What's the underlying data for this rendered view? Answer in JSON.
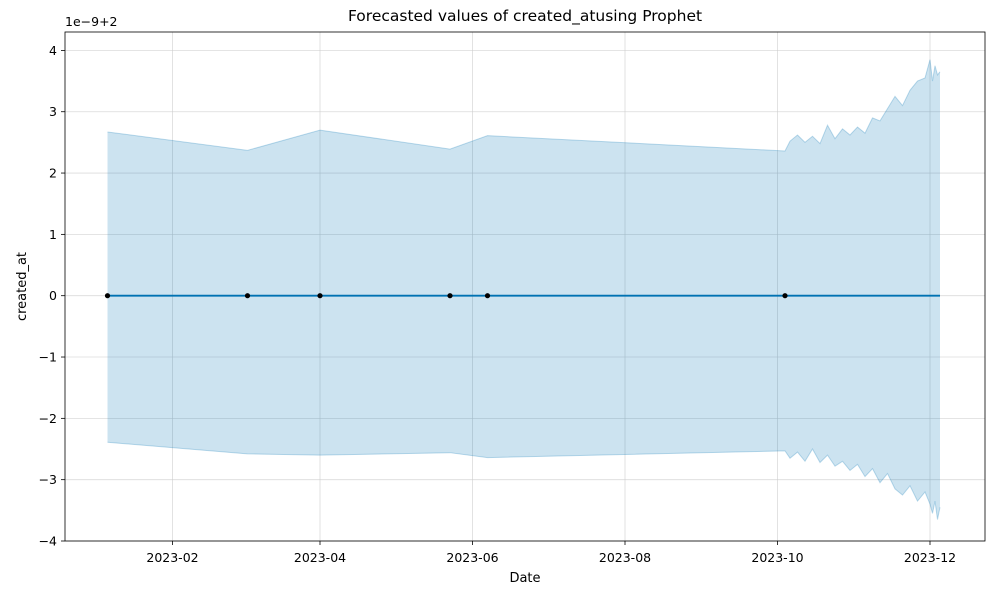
{
  "chart_data": {
    "type": "line",
    "title": "Forecasted values of created_atusing Prophet",
    "xlabel": "Date",
    "ylabel": "created_at",
    "offset_label": "1e−9+2",
    "xlim": [
      "2022-12-20",
      "2023-12-23"
    ],
    "ylim": [
      -4,
      4.3
    ],
    "grid": true,
    "x_ticks": [
      {
        "date": "2023-02-01",
        "label": "2023-02"
      },
      {
        "date": "2023-04-01",
        "label": "2023-04"
      },
      {
        "date": "2023-06-01",
        "label": "2023-06"
      },
      {
        "date": "2023-08-01",
        "label": "2023-08"
      },
      {
        "date": "2023-10-01",
        "label": "2023-10"
      },
      {
        "date": "2023-12-01",
        "label": "2023-12"
      }
    ],
    "y_ticks": [
      {
        "value": 4,
        "label": "4"
      },
      {
        "value": 3,
        "label": "3"
      },
      {
        "value": 2,
        "label": "2"
      },
      {
        "value": 1,
        "label": "1"
      },
      {
        "value": 0,
        "label": "0"
      },
      {
        "value": -1,
        "label": "−1"
      },
      {
        "value": -2,
        "label": "−2"
      },
      {
        "value": -3,
        "label": "−3"
      },
      {
        "value": -4,
        "label": "−4"
      }
    ],
    "observed": {
      "x": [
        "2023-01-06",
        "2023-03-03",
        "2023-04-01",
        "2023-05-23",
        "2023-06-07",
        "2023-10-04"
      ],
      "y": [
        0,
        0,
        0,
        0,
        0,
        0
      ]
    },
    "forecast": {
      "x": [
        "2023-01-06",
        "2023-12-05"
      ],
      "y": [
        0,
        0
      ]
    },
    "interval_upper": {
      "x": [
        "2023-01-06",
        "2023-03-03",
        "2023-04-01",
        "2023-05-23",
        "2023-06-07",
        "2023-10-04",
        "2023-10-06",
        "2023-10-09",
        "2023-10-12",
        "2023-10-15",
        "2023-10-18",
        "2023-10-21",
        "2023-10-24",
        "2023-10-27",
        "2023-10-30",
        "2023-11-02",
        "2023-11-05",
        "2023-11-08",
        "2023-11-11",
        "2023-11-14",
        "2023-11-17",
        "2023-11-20",
        "2023-11-23",
        "2023-11-26",
        "2023-11-29",
        "2023-12-01",
        "2023-12-02",
        "2023-12-03",
        "2023-12-04",
        "2023-12-05"
      ],
      "y": [
        2.67,
        2.37,
        2.7,
        2.39,
        2.61,
        2.36,
        2.52,
        2.62,
        2.5,
        2.6,
        2.48,
        2.78,
        2.56,
        2.72,
        2.62,
        2.75,
        2.65,
        2.9,
        2.85,
        3.05,
        3.25,
        3.1,
        3.35,
        3.5,
        3.55,
        3.85,
        3.5,
        3.75,
        3.6,
        3.65
      ]
    },
    "interval_lower": {
      "x": [
        "2023-01-06",
        "2023-03-03",
        "2023-04-01",
        "2023-05-23",
        "2023-06-07",
        "2023-10-04",
        "2023-10-06",
        "2023-10-09",
        "2023-10-12",
        "2023-10-15",
        "2023-10-18",
        "2023-10-21",
        "2023-10-24",
        "2023-10-27",
        "2023-10-30",
        "2023-11-02",
        "2023-11-05",
        "2023-11-08",
        "2023-11-11",
        "2023-11-14",
        "2023-11-17",
        "2023-11-20",
        "2023-11-23",
        "2023-11-26",
        "2023-11-29",
        "2023-12-01",
        "2023-12-02",
        "2023-12-03",
        "2023-12-04",
        "2023-12-05"
      ],
      "y": [
        -2.39,
        -2.58,
        -2.6,
        -2.56,
        -2.64,
        -2.53,
        -2.65,
        -2.55,
        -2.7,
        -2.5,
        -2.72,
        -2.6,
        -2.78,
        -2.7,
        -2.85,
        -2.75,
        -2.95,
        -2.82,
        -3.05,
        -2.9,
        -3.15,
        -3.25,
        -3.1,
        -3.35,
        -3.2,
        -3.4,
        -3.55,
        -3.35,
        -3.65,
        -3.45
      ]
    },
    "colors": {
      "forecast_line": "#0072B2",
      "interval_fill": "#0072B2",
      "interval_fill_opacity": 0.2,
      "observed_point": "#000000",
      "grid": "#cccccc"
    }
  }
}
